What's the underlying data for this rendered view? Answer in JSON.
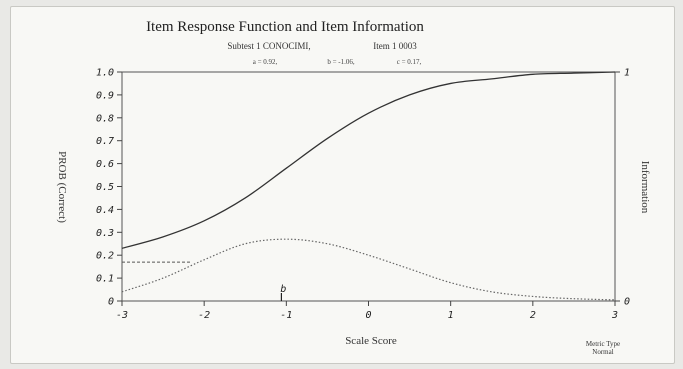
{
  "chart_data": {
    "type": "line",
    "title": "Item Response Function and Item Information",
    "subtitle": {
      "subtest": "Subtest 1 CONOCIMI,",
      "item": "Item 1 0003"
    },
    "params": {
      "a": "a = 0.92,",
      "b": "b = -1.06,",
      "c": "c = 0.17,"
    },
    "xlabel": "Scale Score",
    "ylabel": "PROB (Correct)",
    "y2label": "Information",
    "xlim": [
      -3,
      3
    ],
    "ylim": [
      0,
      1
    ],
    "y2lim": [
      0,
      1
    ],
    "x_ticks": [
      "-3",
      "-2",
      "-1",
      "0",
      "1",
      "2",
      "3"
    ],
    "y_ticks": [
      "0",
      "0.1",
      "0.2",
      "0.3",
      "0.4",
      "0.5",
      "0.6",
      "0.7",
      "0.8",
      "0.9",
      "1.0"
    ],
    "y2_ticks": [
      "0",
      "1"
    ],
    "b_marker": {
      "label": "b",
      "x": -1.06
    },
    "lower_asymptote": {
      "y": 0.17,
      "x_end": -2.15
    },
    "legend": {
      "line1": "Metric Type",
      "line2": "Normal"
    },
    "series": [
      {
        "x": [
          -3.0,
          -2.5,
          -2.0,
          -1.5,
          -1.0,
          -0.5,
          0.0,
          0.5,
          1.0,
          1.5,
          2.0,
          2.5,
          3.0
        ],
        "values": [
          0.23,
          0.28,
          0.35,
          0.45,
          0.58,
          0.71,
          0.82,
          0.9,
          0.95,
          0.97,
          0.99,
          0.995,
          1.0
        ]
      },
      {
        "x": [
          -3.0,
          -2.5,
          -2.0,
          -1.5,
          -1.0,
          -0.5,
          0.0,
          0.5,
          1.0,
          1.5,
          2.0,
          2.5,
          3.0
        ],
        "values": [
          0.04,
          0.1,
          0.18,
          0.25,
          0.27,
          0.25,
          0.2,
          0.14,
          0.08,
          0.04,
          0.02,
          0.01,
          0.005
        ]
      }
    ],
    "grid": false
  }
}
